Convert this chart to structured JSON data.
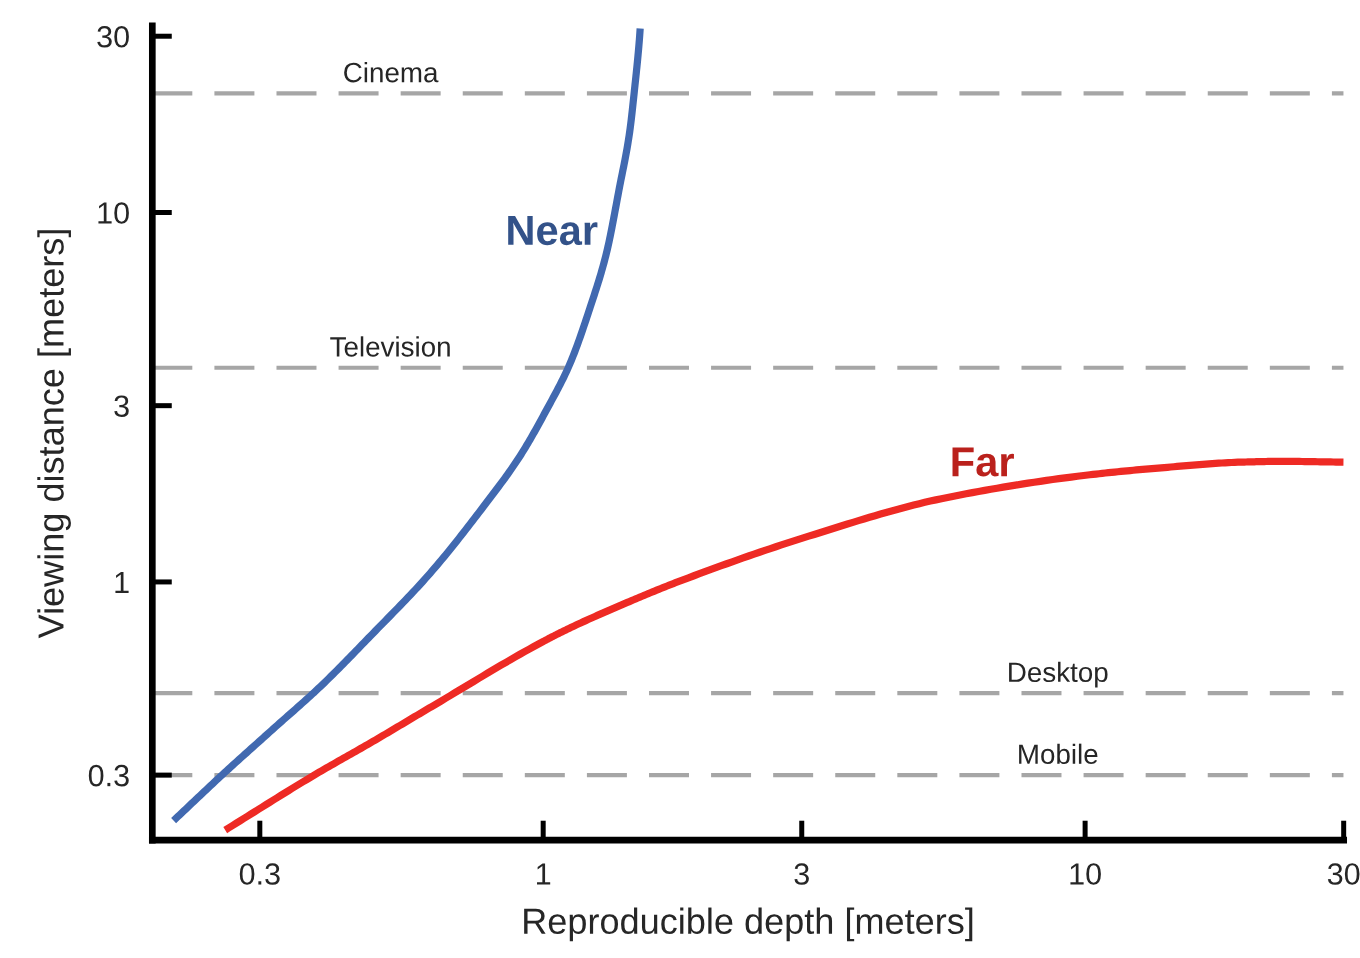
{
  "chart_data": {
    "type": "line",
    "xlabel": "Reproducible depth [meters]",
    "ylabel": "Viewing distance [meters]",
    "log": "xy",
    "xlim": [
      0.19,
      30
    ],
    "ylim": [
      0.2,
      32
    ],
    "xticks": [
      0.3,
      1,
      3,
      10,
      30
    ],
    "yticks": [
      0.3,
      1,
      3,
      10,
      30
    ],
    "grid": false,
    "marker": "none",
    "line_style": "solid",
    "series": [
      {
        "name": "Near",
        "color": "#4169b0",
        "x": [
          0.208,
          0.256,
          0.315,
          0.388,
          0.48,
          0.619,
          0.776,
          0.906,
          1.014,
          1.119,
          1.222,
          1.308,
          1.383,
          1.443,
          1.475,
          1.505,
          1.51
        ],
        "values": [
          0.226,
          0.301,
          0.396,
          0.521,
          0.714,
          1.057,
          1.6,
          2.19,
          2.92,
          3.88,
          5.56,
          7.75,
          11.7,
          16.4,
          21.7,
          29.4,
          31.5
        ]
      },
      {
        "name": "Far",
        "color": "#ee2a24",
        "x": [
          0.259,
          0.378,
          0.485,
          0.623,
          1.0,
          1.13,
          1.43,
          1.77,
          3.09,
          5.43,
          10.2,
          14,
          19.4,
          23,
          30
        ],
        "values": [
          0.213,
          0.3,
          0.37,
          0.46,
          0.69,
          0.755,
          0.88,
          1.0,
          1.33,
          1.68,
          1.95,
          2.04,
          2.11,
          2.12,
          2.11
        ]
      }
    ],
    "ref_lines": [
      {
        "axis": "y",
        "value": 21,
        "label": "Cinema",
        "color": "#a6a6a6",
        "line_style": "dashed"
      },
      {
        "axis": "y",
        "value": 3.8,
        "label": "Television",
        "color": "#a6a6a6",
        "line_style": "dashed"
      },
      {
        "axis": "y",
        "value": 0.5,
        "label": "Desktop",
        "color": "#a6a6a6",
        "line_style": "dashed"
      },
      {
        "axis": "y",
        "value": 0.3,
        "label": "Mobile",
        "color": "#a6a6a6",
        "line_style": "dashed"
      }
    ]
  }
}
